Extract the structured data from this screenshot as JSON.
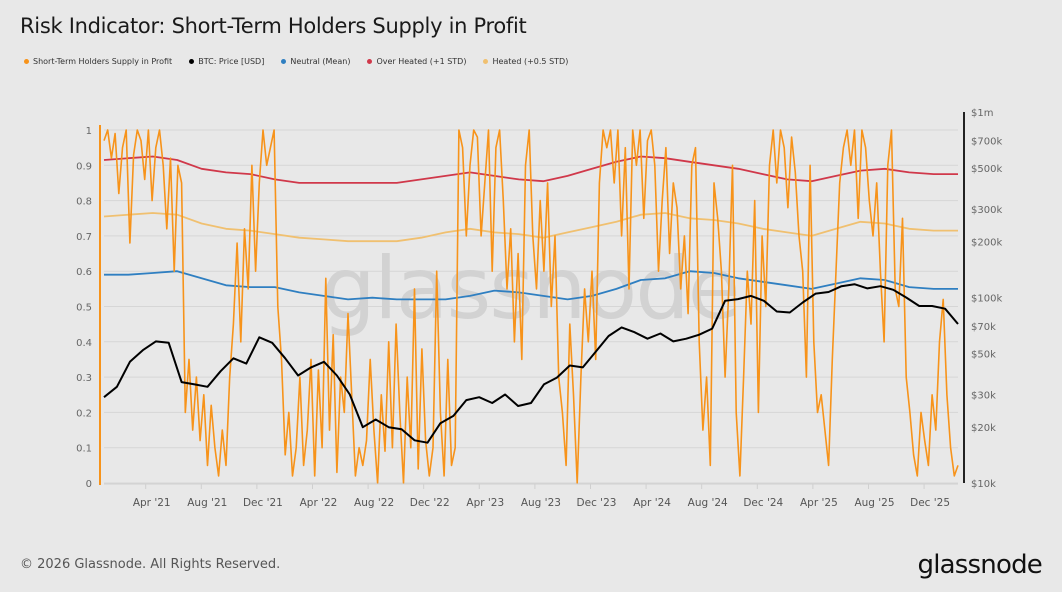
{
  "page": {
    "title": "Risk Indicator: Short-Term Holders Supply in Profit",
    "footer": "© 2026 Glassnode. All Rights Reserved.",
    "brand": "glassnode",
    "watermark": "glassnode"
  },
  "legend": [
    {
      "label": "Short-Term Holders Supply in Profit",
      "color": "#f7931a"
    },
    {
      "label": "BTC: Price [USD]",
      "color": "#000000"
    },
    {
      "label": "Neutral (Mean)",
      "color": "#2f7fc1"
    },
    {
      "label": "Over Heated (+1 STD)",
      "color": "#d0384a"
    },
    {
      "label": "Heated (+0.5 STD)",
      "color": "#f0c070"
    }
  ],
  "chart_data": {
    "type": "line",
    "title": "Risk Indicator: Short-Term Holders Supply in Profit",
    "xlabel": "",
    "ylabel": "",
    "x_range": [
      "2021-01",
      "2026-02"
    ],
    "x_ticks": [
      "Apr '21",
      "Aug '21",
      "Dec '21",
      "Apr '22",
      "Aug '22",
      "Dec '22",
      "Apr '23",
      "Aug '23",
      "Dec '23",
      "Apr '24",
      "Aug '24",
      "Dec '24",
      "Apr '25",
      "Aug '25",
      "Dec '25"
    ],
    "y_left": {
      "range": [
        0,
        1
      ],
      "ticks": [
        "0",
        "0.1",
        "0.2",
        "0.3",
        "0.4",
        "0.5",
        "0.6",
        "0.7",
        "0.8",
        "0.9",
        "1"
      ]
    },
    "y_right": {
      "scale": "log",
      "range": [
        10000,
        1000000
      ],
      "ticks": [
        {
          "v": 10000,
          "label": "$10k"
        },
        {
          "v": 20000,
          "label": "$20k"
        },
        {
          "v": 30000,
          "label": "$30k"
        },
        {
          "v": 50000,
          "label": "$50k"
        },
        {
          "v": 70000,
          "label": "$70k"
        },
        {
          "v": 100000,
          "label": "$100k"
        },
        {
          "v": 200000,
          "label": "$200k"
        },
        {
          "v": 300000,
          "label": "$300k"
        },
        {
          "v": 500000,
          "label": "$500k"
        },
        {
          "v": 700000,
          "label": "$700k"
        },
        {
          "v": 1000000,
          "label": "$1m"
        }
      ]
    },
    "grid": true,
    "legend_position": "top-left",
    "t_start": 2021.0,
    "t_end": 2026.12,
    "series": [
      {
        "name": "Short-Term Holders Supply in Profit",
        "axis": "left",
        "color": "#f7931a",
        "step": 0.02,
        "values": [
          0.97,
          1.0,
          0.92,
          0.99,
          0.82,
          0.95,
          1.0,
          0.68,
          0.93,
          1.0,
          0.97,
          0.86,
          1.0,
          0.8,
          0.95,
          1.0,
          0.9,
          0.72,
          0.92,
          0.6,
          0.9,
          0.85,
          0.2,
          0.35,
          0.15,
          0.3,
          0.12,
          0.25,
          0.05,
          0.22,
          0.1,
          0.02,
          0.15,
          0.05,
          0.3,
          0.45,
          0.68,
          0.4,
          0.72,
          0.55,
          0.9,
          0.6,
          0.85,
          1.0,
          0.9,
          0.95,
          1.0,
          0.5,
          0.35,
          0.08,
          0.2,
          0.02,
          0.1,
          0.3,
          0.05,
          0.15,
          0.35,
          0.02,
          0.32,
          0.1,
          0.58,
          0.15,
          0.42,
          0.03,
          0.3,
          0.2,
          0.48,
          0.25,
          0.02,
          0.1,
          0.05,
          0.12,
          0.35,
          0.15,
          0.0,
          0.25,
          0.09,
          0.4,
          0.1,
          0.45,
          0.2,
          0.0,
          0.3,
          0.1,
          0.55,
          0.04,
          0.38,
          0.12,
          0.02,
          0.1,
          0.6,
          0.2,
          0.02,
          0.35,
          0.05,
          0.1,
          1.0,
          0.95,
          0.7,
          0.9,
          1.0,
          0.98,
          0.7,
          0.85,
          1.0,
          0.6,
          0.95,
          1.0,
          0.8,
          0.55,
          0.72,
          0.4,
          0.65,
          0.35,
          0.9,
          1.0,
          0.7,
          0.55,
          0.8,
          0.6,
          0.85,
          0.5,
          0.7,
          0.3,
          0.2,
          0.05,
          0.45,
          0.25,
          0.0,
          0.3,
          0.55,
          0.4,
          0.6,
          0.35,
          0.85,
          1.0,
          0.95,
          1.0,
          0.85,
          1.0,
          0.7,
          0.95,
          0.55,
          1.0,
          0.9,
          1.0,
          0.75,
          0.97,
          1.0,
          0.9,
          0.6,
          0.8,
          0.95,
          0.65,
          0.85,
          0.78,
          0.55,
          0.7,
          0.48,
          0.9,
          0.95,
          0.4,
          0.15,
          0.3,
          0.05,
          0.85,
          0.75,
          0.6,
          0.3,
          0.55,
          0.9,
          0.2,
          0.02,
          0.3,
          0.6,
          0.45,
          0.8,
          0.2,
          0.7,
          0.5,
          0.9,
          1.0,
          0.85,
          1.0,
          0.95,
          0.78,
          0.98,
          0.88,
          0.7,
          0.6,
          0.3,
          0.9,
          0.4,
          0.2,
          0.25,
          0.15,
          0.05,
          0.35,
          0.6,
          0.85,
          0.95,
          1.0,
          0.9,
          1.0,
          0.75,
          1.0,
          0.95,
          0.8,
          0.7,
          0.85,
          0.6,
          0.4,
          0.9,
          1.0,
          0.55,
          0.5,
          0.75,
          0.3,
          0.2,
          0.08,
          0.02,
          0.2,
          0.12,
          0.05,
          0.25,
          0.15,
          0.4,
          0.52,
          0.25,
          0.1,
          0.02,
          0.05
        ]
      },
      {
        "name": "BTC: Price [USD]",
        "axis": "right",
        "color": "#000000",
        "step": 0.0833,
        "values": [
          29000,
          33000,
          45000,
          52000,
          58000,
          57000,
          35000,
          34000,
          33000,
          40000,
          47000,
          44000,
          61000,
          57000,
          47000,
          38000,
          42000,
          45000,
          38000,
          30000,
          20000,
          22000,
          20000,
          19500,
          17000,
          16500,
          21000,
          23000,
          28000,
          29000,
          27000,
          30000,
          26000,
          27000,
          34000,
          37000,
          43000,
          42000,
          51000,
          62000,
          69000,
          65000,
          60000,
          64000,
          58000,
          60000,
          63000,
          68000,
          96000,
          98000,
          102000,
          96000,
          84000,
          83000,
          94000,
          105000,
          107000,
          115000,
          118000,
          112000,
          115000,
          110000,
          100000,
          90000,
          90000,
          87000,
          72000
        ]
      },
      {
        "name": "Neutral (Mean)",
        "axis": "left",
        "color": "#2f7fc1",
        "step": 0.1667,
        "values": [
          0.59,
          0.59,
          0.595,
          0.6,
          0.58,
          0.56,
          0.555,
          0.555,
          0.54,
          0.53,
          0.52,
          0.525,
          0.52,
          0.52,
          0.52,
          0.53,
          0.545,
          0.54,
          0.53,
          0.52,
          0.53,
          0.55,
          0.575,
          0.58,
          0.6,
          0.595,
          0.58,
          0.57,
          0.56,
          0.55,
          0.565,
          0.58,
          0.575,
          0.555,
          0.55,
          0.55
        ]
      },
      {
        "name": "Over Heated (+1 STD)",
        "axis": "left",
        "color": "#d0384a",
        "step": 0.1667,
        "values": [
          0.915,
          0.92,
          0.925,
          0.915,
          0.89,
          0.88,
          0.875,
          0.86,
          0.85,
          0.85,
          0.85,
          0.85,
          0.85,
          0.86,
          0.87,
          0.88,
          0.87,
          0.86,
          0.855,
          0.87,
          0.89,
          0.91,
          0.925,
          0.92,
          0.91,
          0.9,
          0.89,
          0.875,
          0.86,
          0.855,
          0.87,
          0.885,
          0.89,
          0.88,
          0.875,
          0.875
        ]
      },
      {
        "name": "Heated (+0.5 STD)",
        "axis": "left",
        "color": "#f0c070",
        "step": 0.1667,
        "values": [
          0.755,
          0.76,
          0.765,
          0.76,
          0.735,
          0.72,
          0.715,
          0.705,
          0.695,
          0.69,
          0.685,
          0.685,
          0.685,
          0.695,
          0.71,
          0.72,
          0.71,
          0.705,
          0.695,
          0.71,
          0.725,
          0.74,
          0.76,
          0.765,
          0.75,
          0.745,
          0.735,
          0.72,
          0.71,
          0.7,
          0.72,
          0.74,
          0.735,
          0.72,
          0.715,
          0.715
        ]
      }
    ]
  }
}
